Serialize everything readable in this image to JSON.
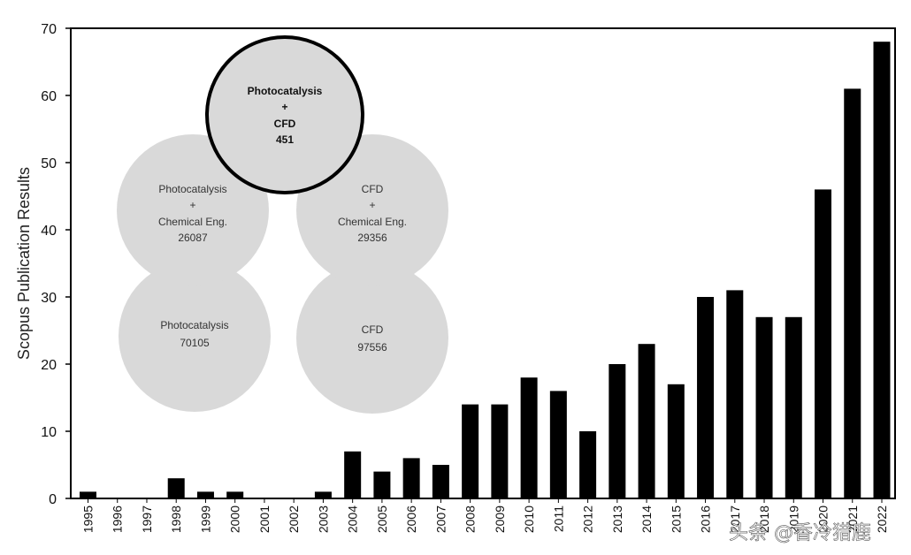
{
  "chart_data": {
    "type": "bar",
    "title": "",
    "xlabel": "",
    "ylabel": "Scopus Publication Results",
    "ylim": [
      0,
      70
    ],
    "yticks": [
      0,
      10,
      20,
      30,
      40,
      50,
      60,
      70
    ],
    "categories": [
      "1995",
      "1996",
      "1997",
      "1998",
      "1999",
      "2000",
      "2001",
      "2002",
      "2003",
      "2004",
      "2005",
      "2006",
      "2007",
      "2008",
      "2009",
      "2010",
      "2011",
      "2012",
      "2013",
      "2014",
      "2015",
      "2016",
      "2017",
      "2018",
      "2019",
      "2020",
      "2021",
      "2022"
    ],
    "values": [
      1,
      0,
      0,
      3,
      1,
      1,
      0,
      0,
      1,
      7,
      4,
      6,
      5,
      14,
      14,
      18,
      16,
      10,
      20,
      23,
      17,
      30,
      31,
      27,
      27,
      46,
      61,
      68
    ],
    "bar_color": "#000000",
    "legend": "none"
  },
  "inset_diagram": {
    "center_circle": {
      "line1": "Photocatalysis",
      "line2": "+",
      "line3": "CFD",
      "count": "451"
    },
    "left_top": {
      "line1": "Photocatalysis",
      "line2": "+",
      "line3": "Chemical Eng.",
      "count": "26087"
    },
    "right_top": {
      "line1": "CFD",
      "line2": "+",
      "line3": "Chemical Eng.",
      "count": "29356"
    },
    "left_bottom": {
      "line1": "Photocatalysis",
      "count": "70105"
    },
    "right_bottom": {
      "line1": "CFD",
      "count": "97556"
    },
    "fill_color": "#d9d9d9",
    "center_stroke": "#000000"
  },
  "watermark": "头条 @香冷猎鹿"
}
